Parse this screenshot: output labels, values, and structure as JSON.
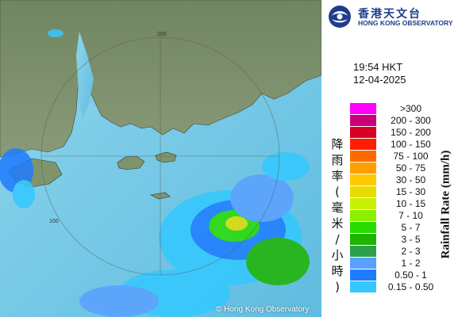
{
  "header": {
    "logo_cn": "香港天文台",
    "logo_en": "HONG KONG OBSERVATORY",
    "emblem_icon": "hko-emblem-icon"
  },
  "timestamp": {
    "time": "19:54 HKT",
    "date": "12-04-2025"
  },
  "legend": {
    "title_cn": "降雨率(毫米/小時)",
    "title_en": "Rainfall Rate (mm/h)",
    "items": [
      {
        "label": ">300",
        "color": "#ff00ff"
      },
      {
        "label": "200 - 300",
        "color": "#c8007a"
      },
      {
        "label": "150 - 200",
        "color": "#d60024"
      },
      {
        "label": "100 - 150",
        "color": "#ff1e00"
      },
      {
        "label": "75 - 100",
        "color": "#ff6a00"
      },
      {
        "label": "50 - 75",
        "color": "#ffa000"
      },
      {
        "label": "30 - 50",
        "color": "#ffc800"
      },
      {
        "label": "15 - 30",
        "color": "#e6dc00"
      },
      {
        "label": "10 - 15",
        "color": "#c8f000"
      },
      {
        "label": "7 - 10",
        "color": "#8cf000"
      },
      {
        "label": "5 - 7",
        "color": "#28dc00"
      },
      {
        "label": "3 - 5",
        "color": "#1eb400"
      },
      {
        "label": "2 - 3",
        "color": "#2ca04c"
      },
      {
        "label": "1 - 2",
        "color": "#5aa0ff"
      },
      {
        "label": "0.50 - 1",
        "color": "#1e7cff"
      },
      {
        "label": "0.15 - 0.50",
        "color": "#34c8ff"
      }
    ]
  },
  "map": {
    "range_rings": [
      "100",
      "200"
    ],
    "copyright": "© Hong Kong Observatory"
  }
}
